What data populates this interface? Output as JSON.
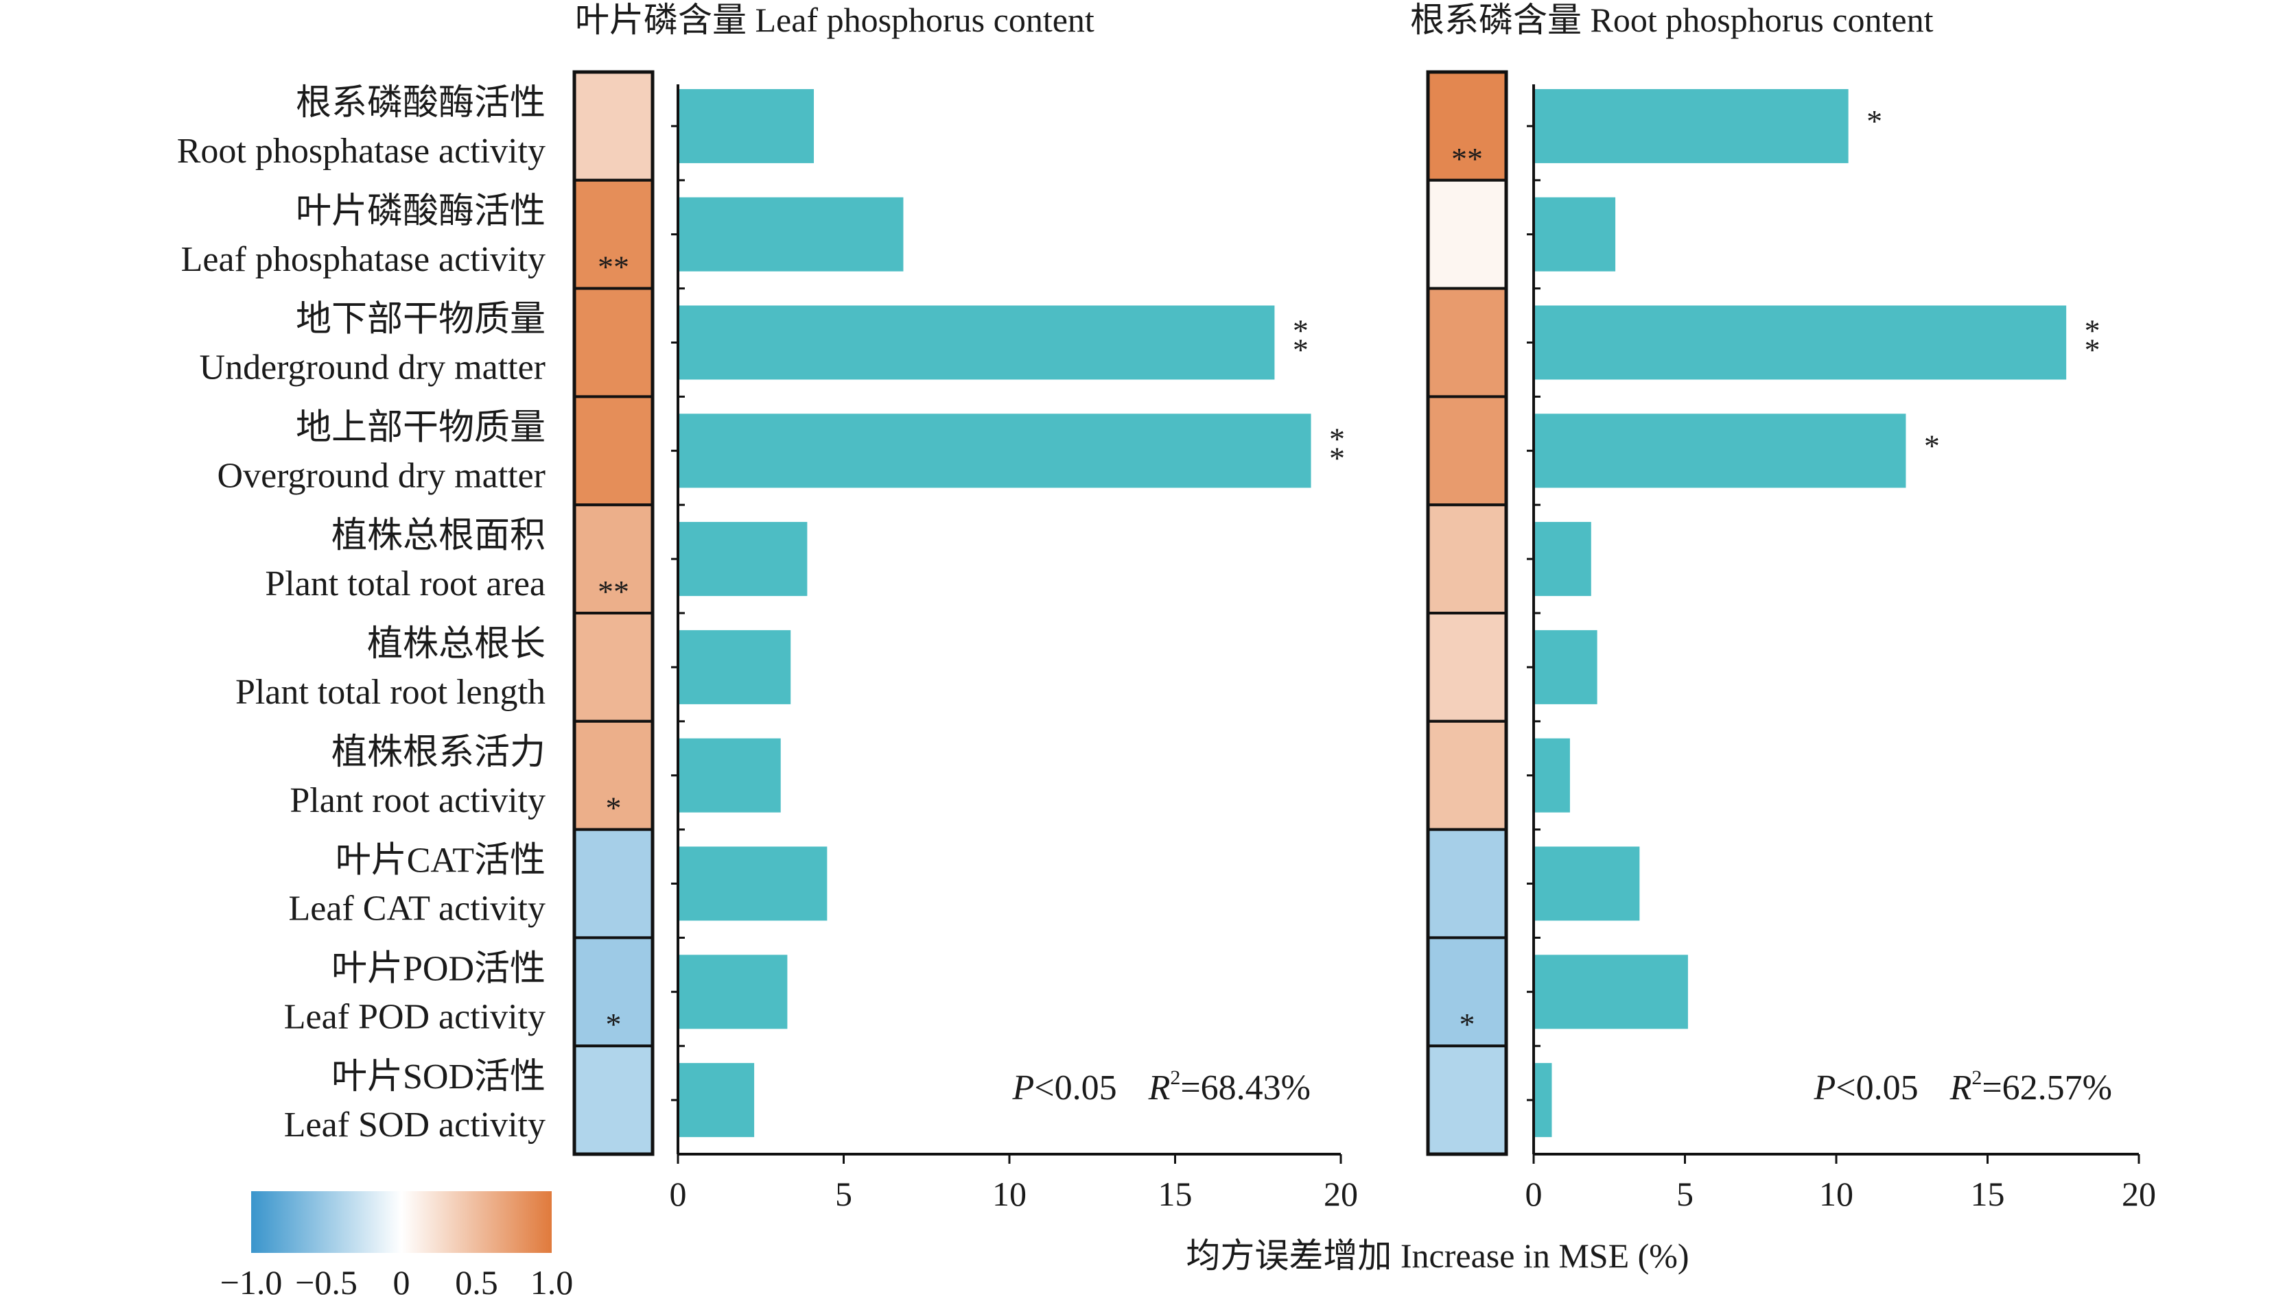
{
  "chart_data": {
    "type": "bar",
    "orientation": "horizontal",
    "variables": [
      {
        "zh": "根系磷酸酶活性",
        "en": "Root phosphatase activity"
      },
      {
        "zh": "叶片磷酸酶活性",
        "en": "Leaf phosphatase activity"
      },
      {
        "zh": "地下部干物质量",
        "en": "Underground dry matter"
      },
      {
        "zh": "地上部干物质量",
        "en": "Overground dry matter"
      },
      {
        "zh": "植株总根面积",
        "en": "Plant total root area"
      },
      {
        "zh": "植株总根长",
        "en": "Plant total root length"
      },
      {
        "zh": "植株根系活力",
        "en": "Plant root activity"
      },
      {
        "zh": "叶片CAT活性",
        "en": "Leaf CAT activity"
      },
      {
        "zh": "叶片POD活性",
        "en": "Leaf POD activity"
      },
      {
        "zh": "叶片SOD活性",
        "en": "Leaf SOD activity"
      }
    ],
    "panels": [
      {
        "title": "叶片磷含量 Leaf phosphorus content",
        "values": [
          4.1,
          6.8,
          18.0,
          19.1,
          3.9,
          3.4,
          3.1,
          4.5,
          3.3,
          2.3
        ],
        "bar_sig": [
          "",
          "",
          "**",
          "**",
          "",
          "",
          "",
          "",
          "",
          ""
        ],
        "correlation": [
          0.35,
          0.85,
          0.85,
          0.85,
          0.6,
          0.55,
          0.6,
          -0.45,
          -0.5,
          -0.4
        ],
        "corr_sig": [
          "",
          "**",
          "",
          "",
          "**",
          "",
          "*",
          "",
          "*",
          ""
        ],
        "stats": {
          "p": "P",
          "p_rest": "<0.05",
          "r": "R",
          "r_sup": "2",
          "r_rest": "=68.43%"
        },
        "x_ticks": [
          "0",
          "5",
          "10",
          "15",
          "20"
        ],
        "xlim": [
          0,
          20
        ]
      },
      {
        "title": "根系磷含量 Root phosphorus content",
        "values": [
          10.4,
          2.7,
          17.6,
          12.3,
          1.9,
          2.1,
          1.2,
          3.5,
          5.1,
          0.6
        ],
        "bar_sig": [
          "*",
          "",
          "**",
          "*",
          "",
          "",
          "",
          "",
          "",
          ""
        ],
        "correlation": [
          0.9,
          0.07,
          0.75,
          0.75,
          0.45,
          0.35,
          0.45,
          -0.45,
          -0.5,
          -0.4
        ],
        "corr_sig": [
          "**",
          "",
          "",
          "",
          "",
          "",
          "",
          "",
          "*",
          ""
        ],
        "stats": {
          "p": "P",
          "p_rest": "<0.05",
          "r": "R",
          "r_sup": "2",
          "r_rest": "=62.57%"
        },
        "x_ticks": [
          "0",
          "5",
          "10",
          "15",
          "20"
        ],
        "xlim": [
          0,
          20
        ]
      }
    ],
    "xlabel": "均方误差增加 Increase in MSE (%)",
    "colorbar": {
      "min": -1.0,
      "max": 1.0,
      "tick_labels": [
        "−1.0",
        "−0.5",
        "0",
        "0.5",
        "1.0"
      ]
    },
    "colors": {
      "bar": "#4dbdc4",
      "negative": "#3a95cc",
      "zero": "#ffffff",
      "positive": "#e07a3c"
    }
  }
}
